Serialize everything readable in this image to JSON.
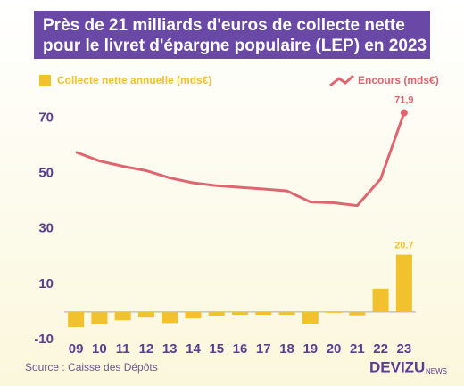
{
  "chart_data": {
    "type": "bar-line",
    "title": [
      "Près de 21 milliards d'euros de collecte nette",
      "pour le livret d'épargne populaire (LEP) en 2023"
    ],
    "categories": [
      "09",
      "10",
      "11",
      "12",
      "13",
      "14",
      "15",
      "16",
      "17",
      "18",
      "19",
      "20",
      "21",
      "22",
      "23"
    ],
    "series": [
      {
        "name": "Collecte nette annuelle (mds€)",
        "type": "bar",
        "color": "#f2c12e",
        "values": [
          -5.5,
          -4.5,
          -3,
          -2,
          -4,
          -2.3,
          -1.3,
          -1,
          -1,
          -1,
          -4.2,
          -0.3,
          -1.2,
          8.4,
          20.7
        ],
        "value_labels": [
          null,
          null,
          null,
          null,
          null,
          null,
          null,
          null,
          null,
          null,
          null,
          null,
          null,
          null,
          "20.7"
        ]
      },
      {
        "name": "Encours (mds€)",
        "type": "line",
        "color": "#de6670",
        "values": [
          57.7,
          54.5,
          52.6,
          51,
          48.4,
          46.6,
          45.6,
          45,
          44.4,
          43.7,
          39.7,
          39.4,
          38.4,
          48,
          71.9
        ],
        "value_labels": [
          null,
          null,
          null,
          null,
          null,
          null,
          null,
          null,
          null,
          null,
          null,
          null,
          null,
          null,
          "71,9"
        ]
      }
    ],
    "ylim": [
      -10,
      74
    ],
    "yticks": [
      -10,
      10,
      30,
      50,
      70
    ],
    "grid": false,
    "source": "Source : Caisse des Dépôts",
    "logo": {
      "main": "DEVIZU",
      "sub": "NEWS"
    }
  }
}
